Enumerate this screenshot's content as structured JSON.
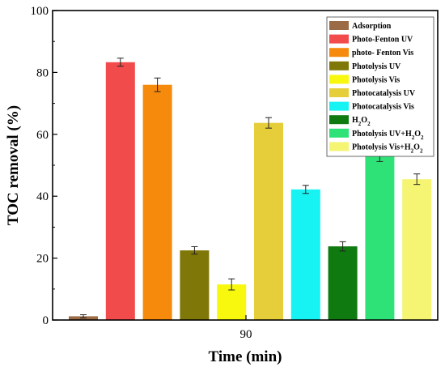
{
  "chart_data": {
    "type": "bar",
    "title": "",
    "xlabel": "Time (min)",
    "ylabel": "TOC removal (%)",
    "categories": [
      "90"
    ],
    "ylim": [
      0,
      100
    ],
    "yticks": [
      0,
      20,
      40,
      60,
      80,
      100
    ],
    "grid": false,
    "legend_position": "top-right",
    "series": [
      {
        "name": "Adsorption",
        "value": 1.2,
        "error": 0.5,
        "color": "#9b6b45"
      },
      {
        "name": "Photo-Fenton UV",
        "value": 83.3,
        "error": 1.3,
        "color": "#f24b4b"
      },
      {
        "name": "photo- Fenton Vis",
        "value": 76.0,
        "error": 2.2,
        "color": "#f58a0c"
      },
      {
        "name": "Photolysis UV",
        "value": 22.5,
        "error": 1.2,
        "color": "#7f7707"
      },
      {
        "name": "Photolysis Vis",
        "value": 11.5,
        "error": 1.8,
        "color": "#f8f80f"
      },
      {
        "name": "Photocatalysis UV",
        "value": 63.7,
        "error": 1.7,
        "color": "#e6cd3a"
      },
      {
        "name": "Photocatalysis Vis",
        "value": 42.2,
        "error": 1.3,
        "color": "#17f3f3"
      },
      {
        "name": "H2O2",
        "value": 23.8,
        "error": 1.5,
        "color": "#0f7a0f"
      },
      {
        "name": "Photolysis UV+H2O2",
        "value": 53.0,
        "error": 1.8,
        "color": "#2ee277"
      },
      {
        "name": "Photolysis Vis+H2O2",
        "value": 45.5,
        "error": 1.7,
        "color": "#f5f573"
      }
    ]
  }
}
